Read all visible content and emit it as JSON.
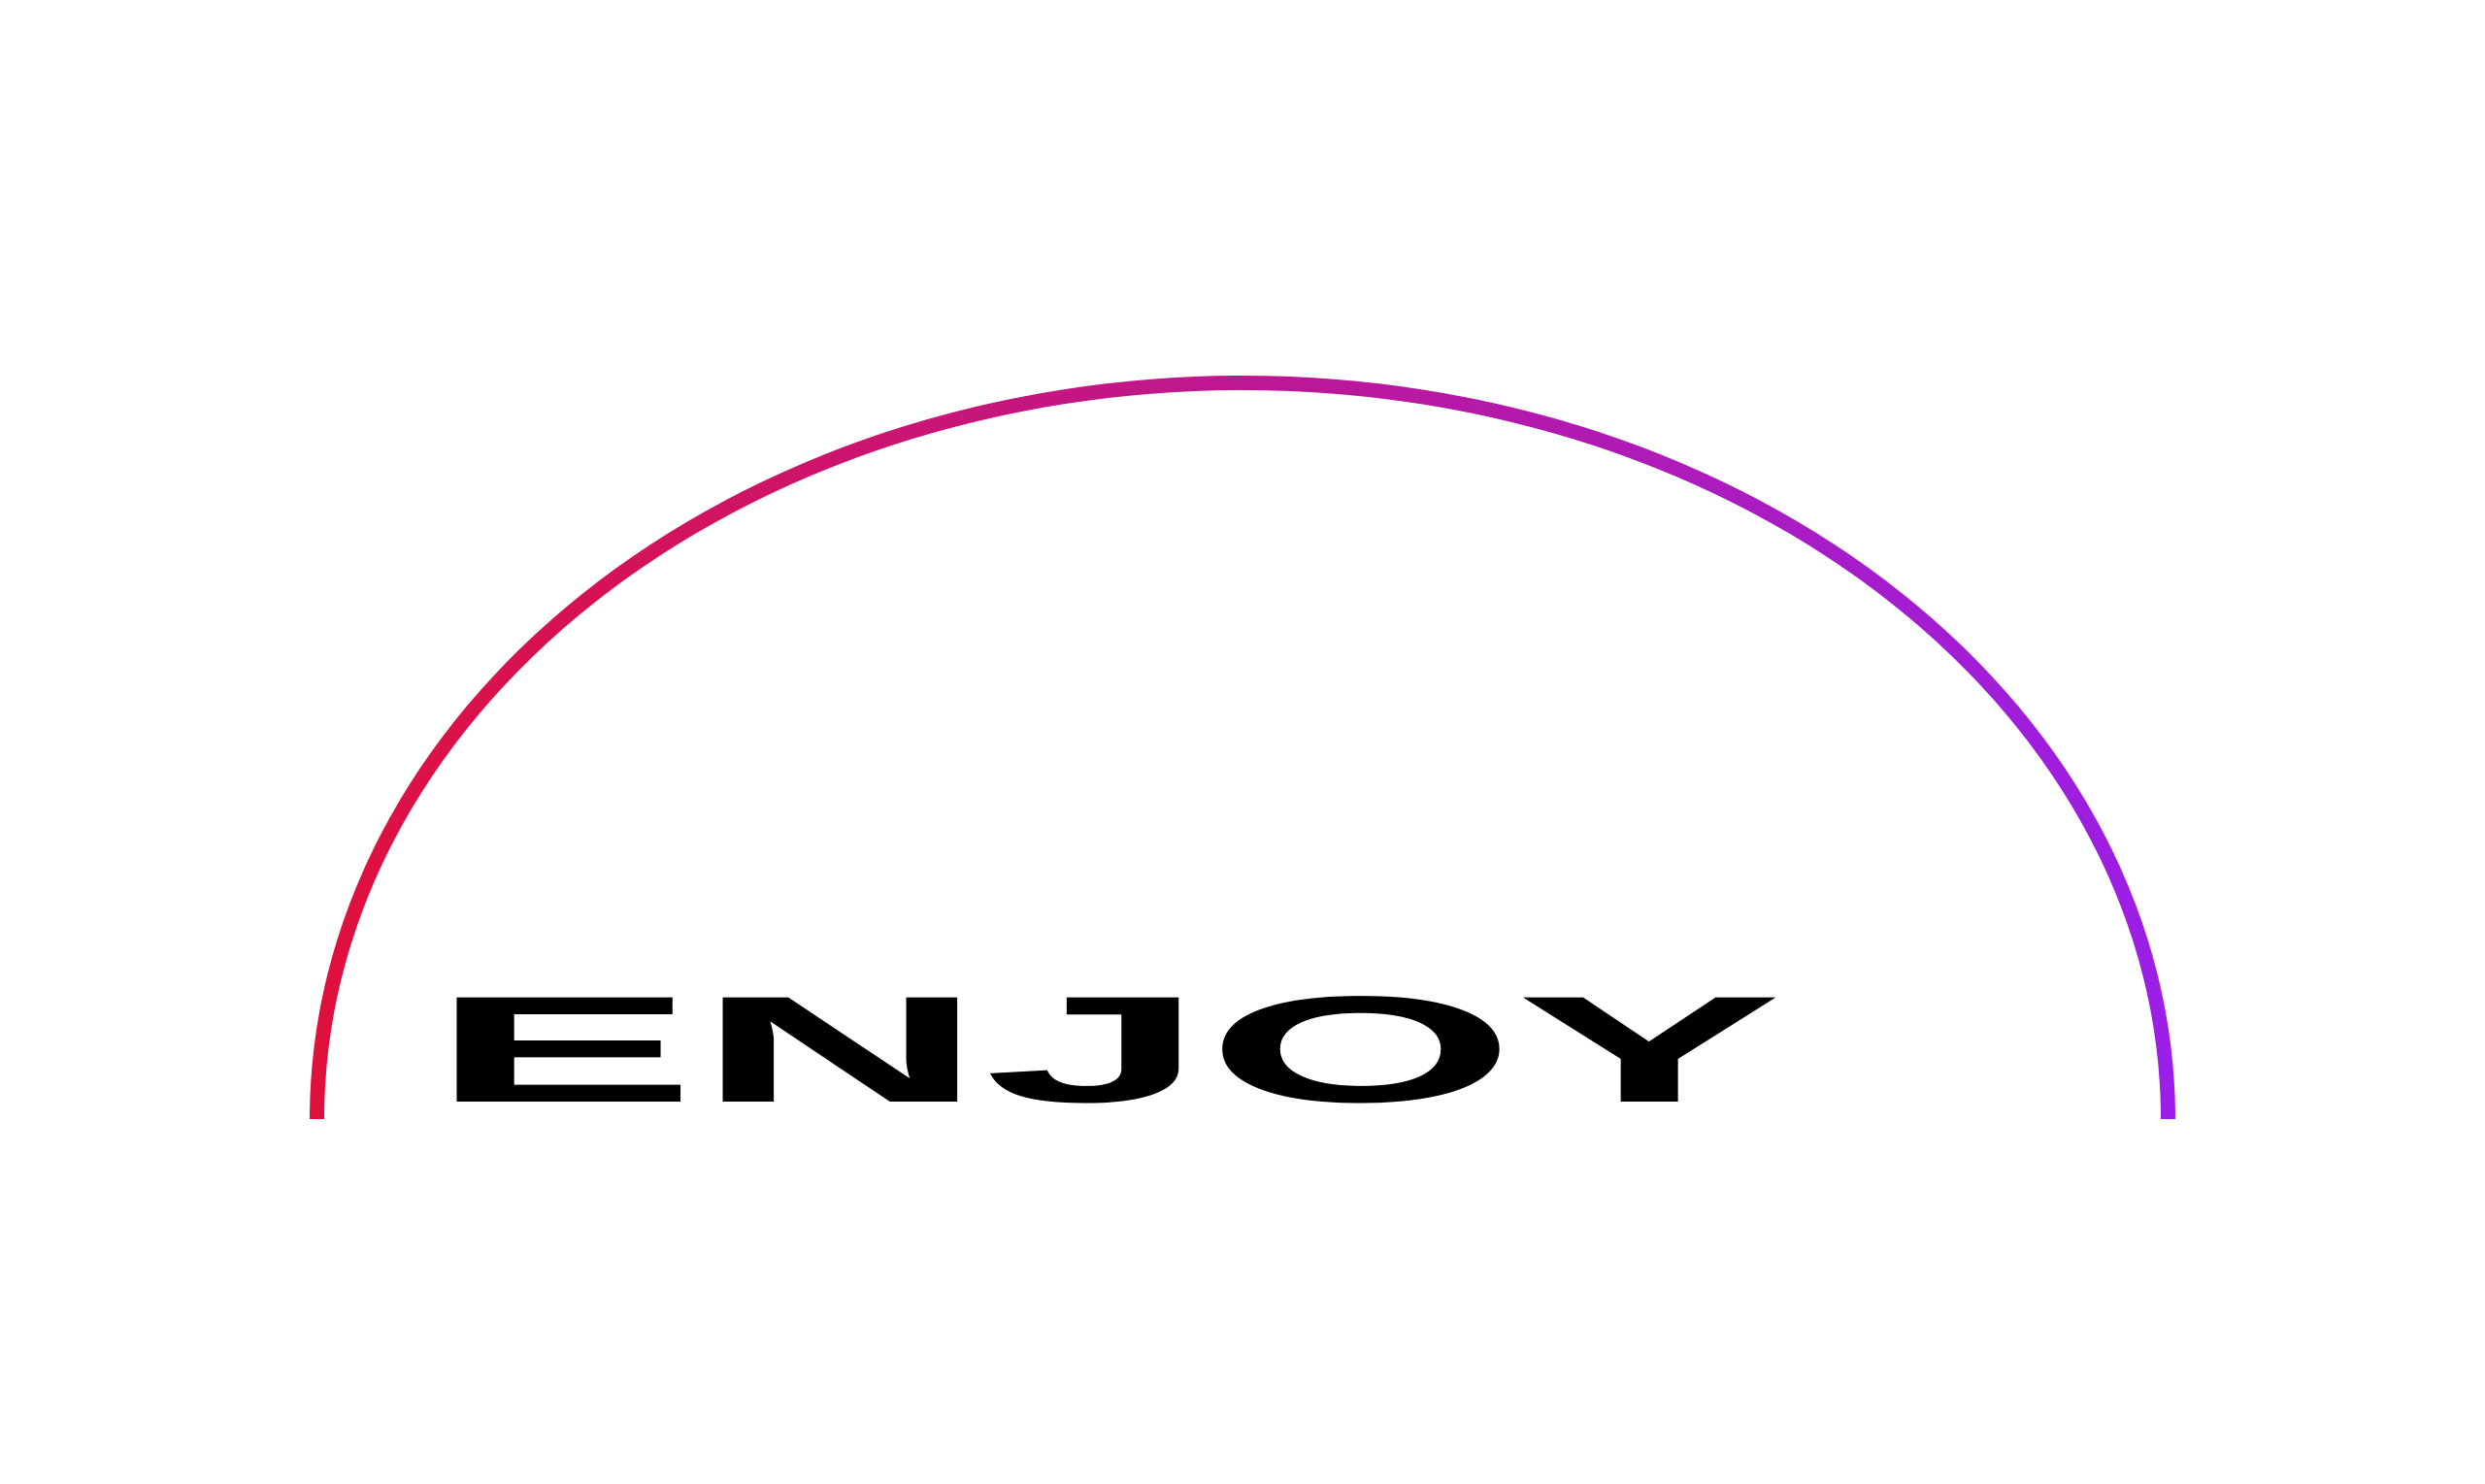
{
  "logo": {
    "wordmark": "ENJOY",
    "text_color": "#000000",
    "arc_gradient": [
      "#e0103c",
      "#9b1fe8"
    ]
  }
}
